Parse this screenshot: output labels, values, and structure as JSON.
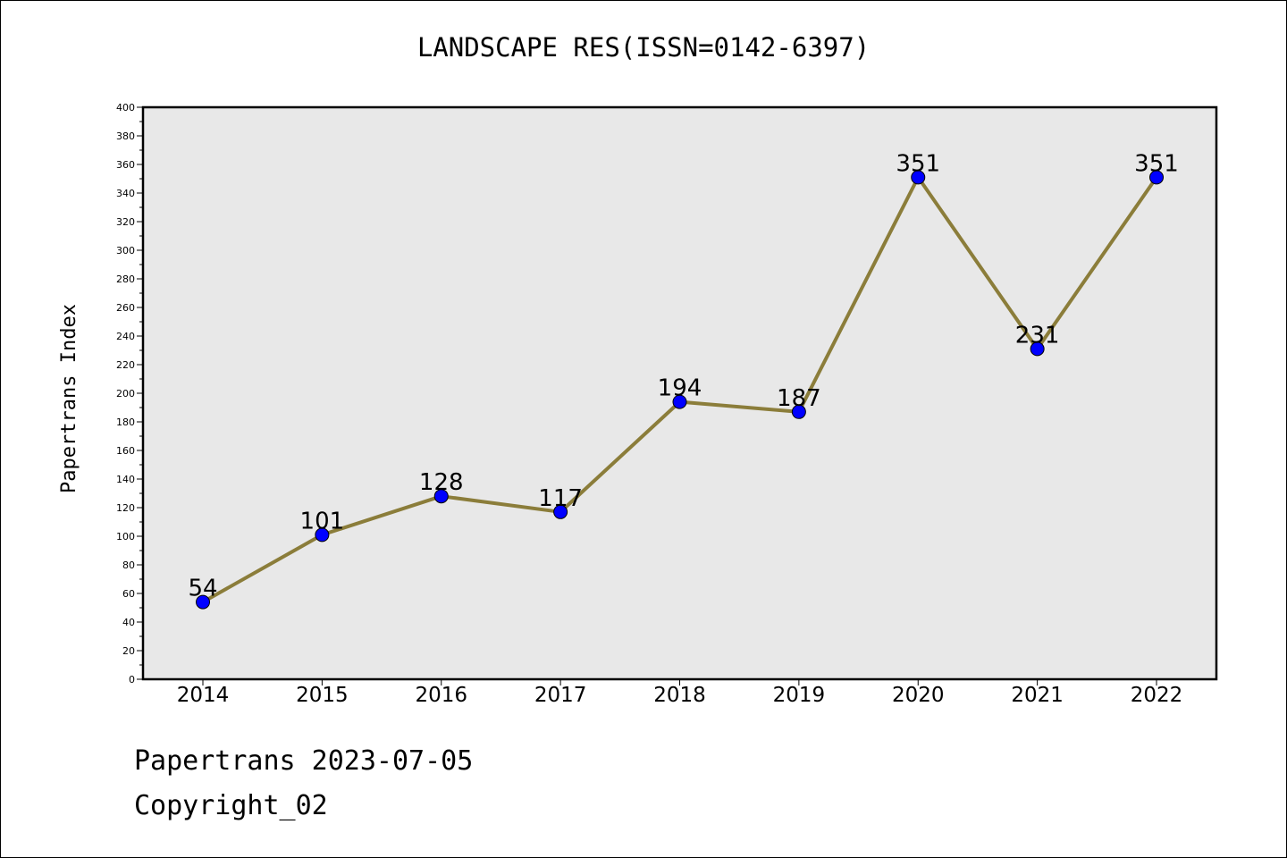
{
  "chart_data": {
    "type": "line",
    "title": "LANDSCAPE RES(ISSN=0142-6397)",
    "xlabel": "",
    "ylabel": "Papertrans Index",
    "categories": [
      "2014",
      "2015",
      "2016",
      "2017",
      "2018",
      "2019",
      "2020",
      "2021",
      "2022"
    ],
    "values": [
      54,
      101,
      128,
      117,
      194,
      187,
      351,
      231,
      351
    ],
    "data_labels": [
      "54",
      "101",
      "128",
      "117",
      "194",
      "187",
      "351",
      "231",
      "351"
    ],
    "ylim": [
      0,
      400
    ],
    "yticks": [
      "0",
      "20",
      "40",
      "60",
      "80",
      "100",
      "120",
      "140",
      "160",
      "180",
      "200",
      "220",
      "240",
      "260",
      "280",
      "300",
      "320",
      "340",
      "360",
      "380",
      "400"
    ],
    "grid": false,
    "legend": "none",
    "colors": {
      "line": "#8b7d3a",
      "marker": "#0000ff",
      "plot_bg": "#e8e8e8"
    }
  },
  "footer": {
    "line1": "Papertrans 2023-07-05",
    "line2": "Copyright_02"
  }
}
